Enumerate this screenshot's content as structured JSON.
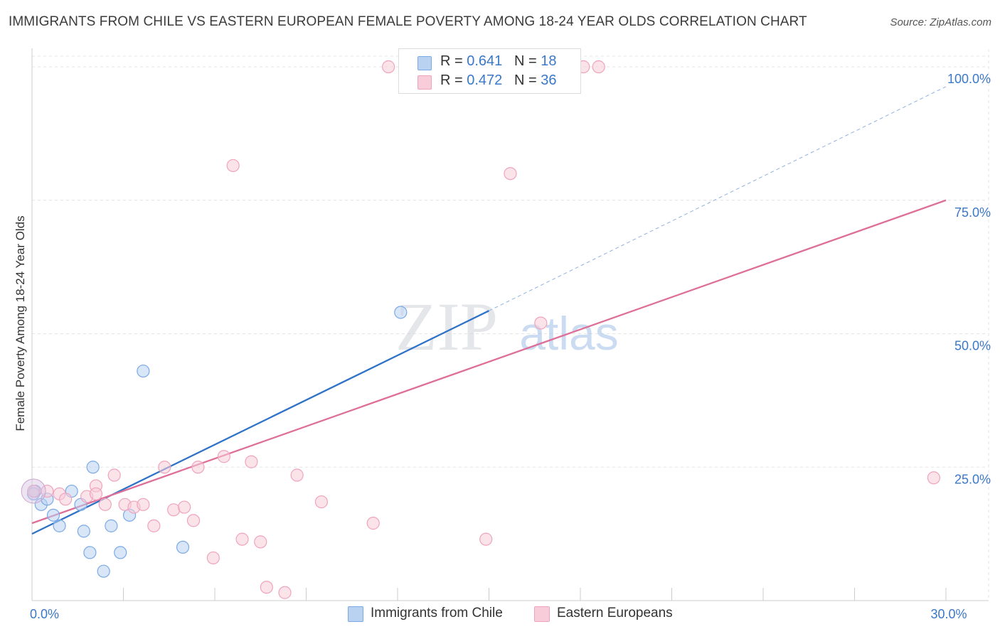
{
  "title": "IMMIGRANTS FROM CHILE VS EASTERN EUROPEAN FEMALE POVERTY AMONG 18-24 YEAR OLDS CORRELATION CHART",
  "source": "Source: ZipAtlas.com",
  "watermark": {
    "zip": "ZIP",
    "atlas": "atlas"
  },
  "legend_stats": [
    {
      "r_label": "R =",
      "r_value": "0.641",
      "n_label": "N =",
      "n_value": "18"
    },
    {
      "r_label": "R =",
      "r_value": "0.472",
      "n_label": "N =",
      "n_value": "36"
    }
  ],
  "chart_data": {
    "type": "scatter",
    "ylabel": "Female Poverty Among 18-24 Year Olds",
    "xlim": [
      0,
      30
    ],
    "ylim": [
      0,
      102
    ],
    "x_tick_labels": [
      {
        "x": 0,
        "label": "0.0%"
      },
      {
        "x": 30,
        "label": "30.0%"
      }
    ],
    "y_tick_labels": [
      {
        "y": 25,
        "label": "25.0%"
      },
      {
        "y": 50,
        "label": "50.0%"
      },
      {
        "y": 75,
        "label": "75.0%"
      },
      {
        "y": 100,
        "label": "100.0%"
      }
    ],
    "x_minor_ticks": [
      0,
      3,
      6,
      9,
      12,
      15,
      18,
      21,
      24,
      27,
      30
    ],
    "grid": true,
    "legend_position": "bottom",
    "series": [
      {
        "name": "Immigrants from Chile",
        "color": "#7aaae6",
        "fill": "#b9d2f2",
        "points": [
          [
            0.1,
            20.5
          ],
          [
            0.3,
            18.0
          ],
          [
            0.5,
            19.0
          ],
          [
            0.7,
            16.0
          ],
          [
            0.9,
            14.0
          ],
          [
            1.3,
            20.5
          ],
          [
            1.6,
            18.0
          ],
          [
            1.7,
            13.0
          ],
          [
            1.9,
            9.0
          ],
          [
            2.0,
            25.0
          ],
          [
            2.35,
            5.5
          ],
          [
            2.6,
            14.0
          ],
          [
            2.9,
            9.0
          ],
          [
            3.2,
            16.0
          ],
          [
            3.65,
            43.0
          ],
          [
            4.95,
            10.0
          ],
          [
            12.1,
            54.0
          ],
          [
            0.05,
            20.0
          ]
        ],
        "trend": {
          "x0": 0,
          "y0": 12.5,
          "x1": 15.0,
          "y1": 54.3,
          "dash_to_x": 30,
          "dash_to_y": 96.3
        }
      },
      {
        "name": "Eastern Europeans",
        "color": "#f0a3bc",
        "fill": "#f8ccd9",
        "points": [
          [
            0.05,
            20.5
          ],
          [
            0.5,
            20.5
          ],
          [
            0.9,
            20.0
          ],
          [
            1.1,
            19.0
          ],
          [
            2.1,
            21.5
          ],
          [
            1.8,
            19.5
          ],
          [
            2.1,
            20.0
          ],
          [
            2.4,
            18.0
          ],
          [
            2.7,
            23.5
          ],
          [
            3.05,
            18.0
          ],
          [
            3.35,
            17.5
          ],
          [
            3.65,
            18.0
          ],
          [
            4.0,
            14.0
          ],
          [
            4.35,
            25.0
          ],
          [
            4.65,
            17.0
          ],
          [
            5.0,
            17.5
          ],
          [
            5.3,
            15.0
          ],
          [
            5.45,
            25.0
          ],
          [
            5.95,
            8.0
          ],
          [
            6.3,
            27.0
          ],
          [
            6.6,
            81.5
          ],
          [
            6.9,
            11.5
          ],
          [
            7.2,
            26.0
          ],
          [
            7.5,
            11.0
          ],
          [
            7.7,
            2.5
          ],
          [
            8.3,
            1.5
          ],
          [
            8.7,
            23.5
          ],
          [
            9.5,
            18.5
          ],
          [
            11.2,
            14.5
          ],
          [
            11.7,
            100.0
          ],
          [
            14.9,
            11.5
          ],
          [
            15.7,
            80.0
          ],
          [
            16.7,
            52.0
          ],
          [
            18.1,
            100.0
          ],
          [
            18.6,
            100.0
          ],
          [
            29.6,
            23.0
          ]
        ],
        "trend": {
          "x0": 0,
          "y0": 14.5,
          "x1": 30,
          "y1": 75.0
        }
      }
    ]
  }
}
